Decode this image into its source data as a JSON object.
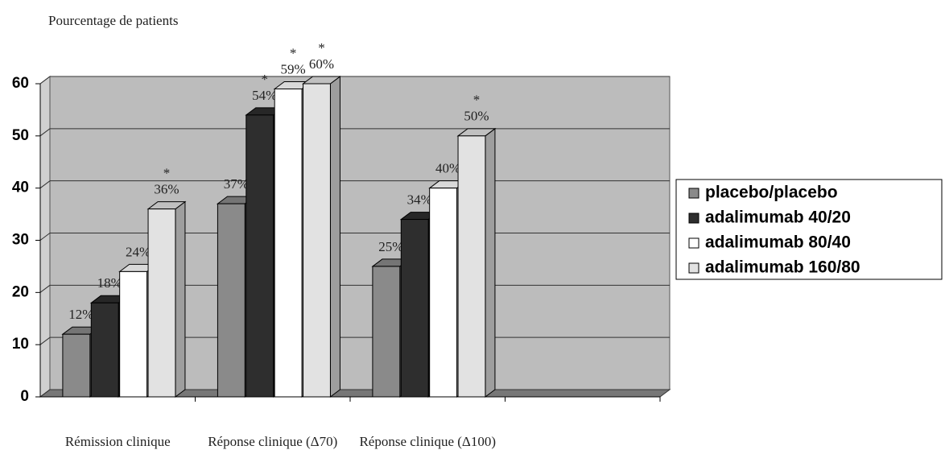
{
  "chart_data": {
    "type": "bar3d",
    "y_label": "Pourcentage de patients",
    "categories": [
      "Rémission clinique",
      "Réponse clinique (Δ70)",
      "Réponse clinique (Δ100)",
      null
    ],
    "series": [
      {
        "name": "placebo/placebo",
        "color": "#8a8a8a",
        "values": [
          12,
          37,
          25,
          null
        ],
        "value_labels": [
          "12%",
          "37%",
          "25%",
          null
        ],
        "annotations": [
          null,
          null,
          null,
          null
        ]
      },
      {
        "name": "adalimumab 40/20",
        "color": "#2e2e2e",
        "values": [
          18,
          54,
          34,
          null
        ],
        "value_labels": [
          "18%",
          "54%",
          "34%",
          null
        ],
        "annotations": [
          null,
          "*",
          null,
          null
        ]
      },
      {
        "name": "adalimumab 80/40",
        "color": "#ffffff",
        "values": [
          24,
          59,
          40,
          null
        ],
        "value_labels": [
          "24%",
          "59%",
          "40%",
          null
        ],
        "annotations": [
          null,
          "*",
          null,
          null
        ]
      },
      {
        "name": "adalimumab 160/80",
        "color": "#e2e2e2",
        "values": [
          36,
          60,
          50,
          null
        ],
        "value_labels": [
          "36%",
          "60%",
          "50%",
          null
        ],
        "annotations": [
          "*",
          "*",
          "*",
          null
        ]
      }
    ],
    "ylim": [
      0,
      60
    ],
    "yticks": [
      0,
      10,
      20,
      30,
      40,
      50,
      60
    ],
    "grid": true,
    "legend": "right"
  }
}
